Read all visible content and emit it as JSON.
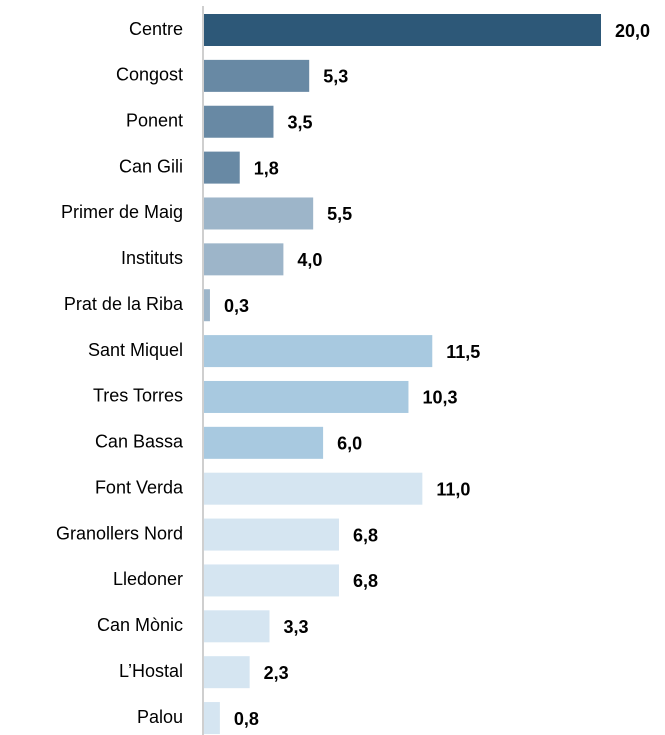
{
  "chart_data": {
    "type": "barh",
    "categories": [
      "Centre",
      "Congost",
      "Ponent",
      "Can Gili",
      "Primer de Maig",
      "Instituts",
      "Prat de la Riba",
      "Sant Miquel",
      "Tres Torres",
      "Can Bassa",
      "Font Verda",
      "Granollers Nord",
      "Lledoner",
      "Can Mònic",
      "L’Hostal",
      "Palou"
    ],
    "values": [
      20.0,
      5.3,
      3.5,
      1.8,
      5.5,
      4.0,
      0.3,
      11.5,
      10.3,
      6.0,
      11.0,
      6.8,
      6.8,
      3.3,
      2.3,
      0.8
    ],
    "value_labels": [
      "20,0",
      "5,3",
      "3,5",
      "1,8",
      "5,5",
      "4,0",
      "0,3",
      "11,5",
      "10,3",
      "6,0",
      "11,0",
      "6,8",
      "6,8",
      "3,3",
      "2,3",
      "0,8"
    ],
    "colors": [
      "#2d5878",
      "#6889a4",
      "#6889a4",
      "#6889a4",
      "#9db5c9",
      "#9db5c9",
      "#9db5c9",
      "#a8c9e0",
      "#a8c9e0",
      "#a8c9e0",
      "#d5e5f1",
      "#d5e5f1",
      "#d5e5f1",
      "#d5e5f1",
      "#d5e5f1",
      "#d5e5f1"
    ],
    "xlim": [
      0,
      20
    ]
  }
}
